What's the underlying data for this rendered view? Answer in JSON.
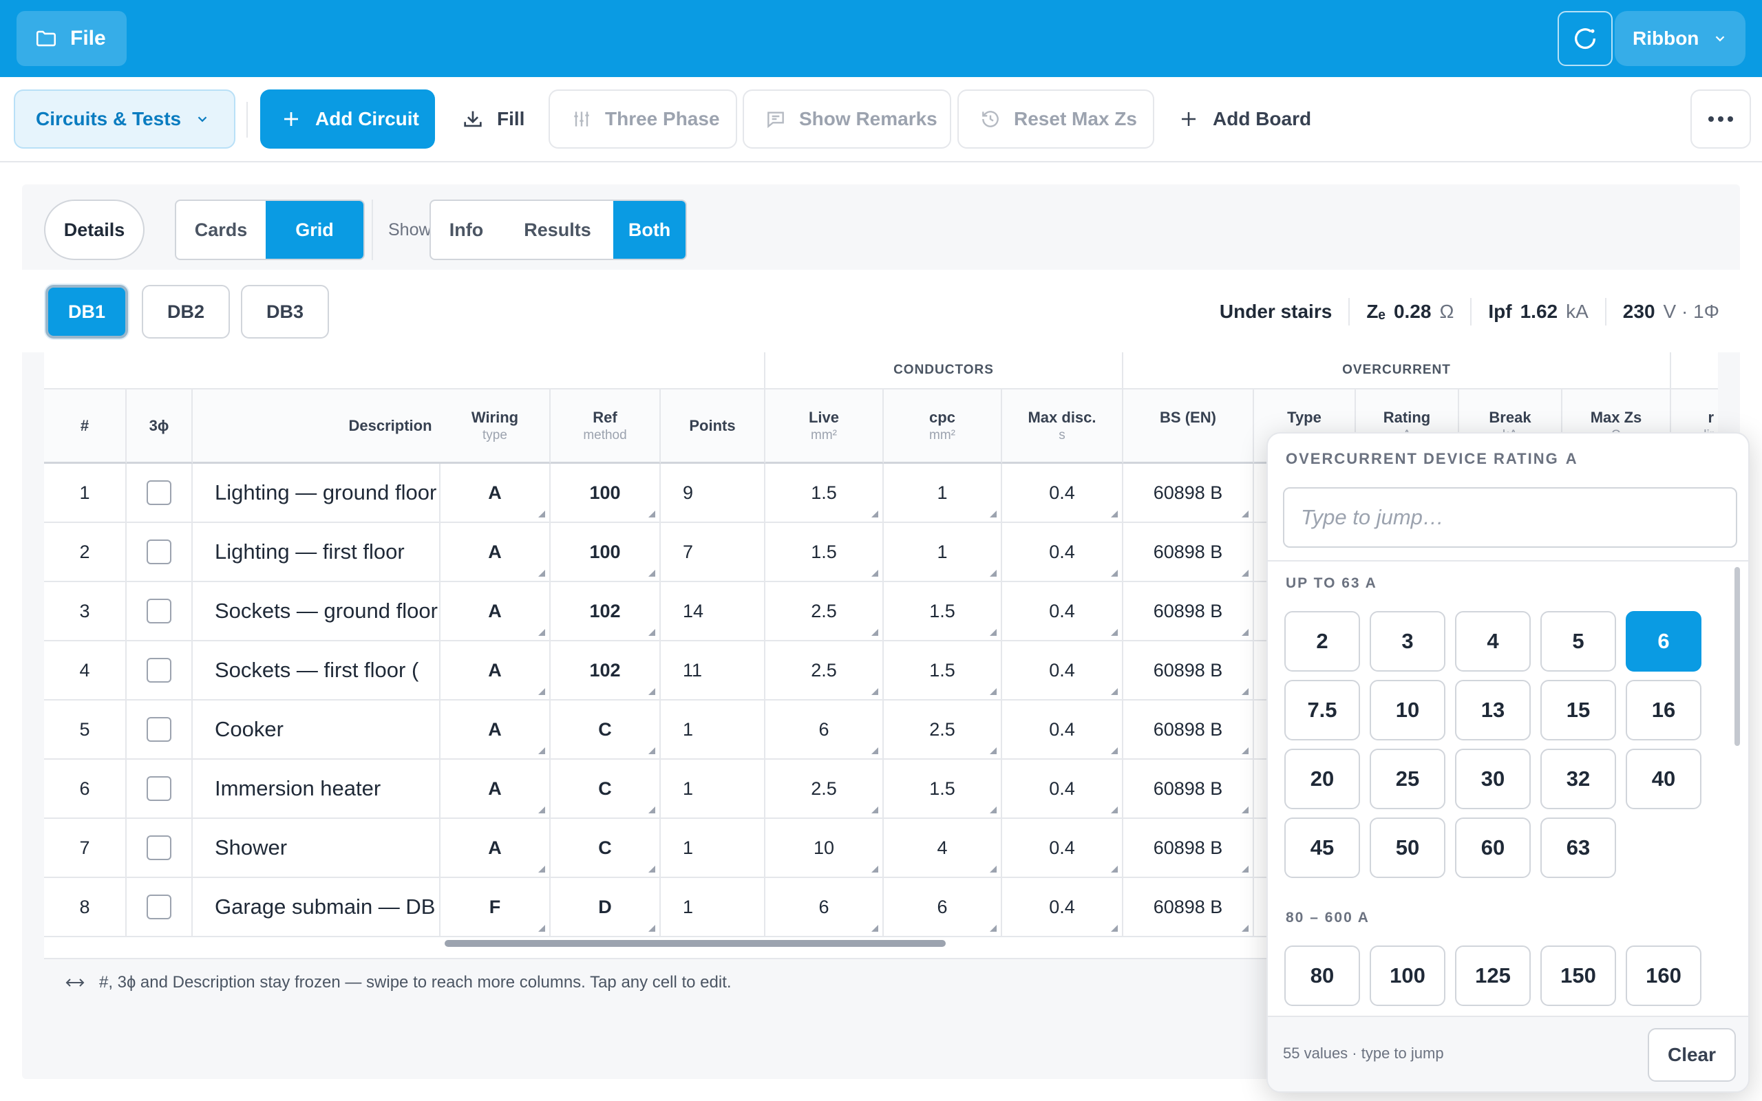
{
  "topbar": {
    "file_label": "File",
    "ribbon_label": "Ribbon"
  },
  "toolbar": {
    "circuits_label": "Circuits & Tests",
    "add_circuit_label": "Add Circuit",
    "fill_label": "Fill",
    "three_phase_label": "Three Phase",
    "show_remarks_label": "Show Remarks",
    "reset_max_zs_label": "Reset Max Zs",
    "add_board_label": "Add Board"
  },
  "view": {
    "details_label": "Details",
    "cards_label": "Cards",
    "grid_label": "Grid",
    "show_label": "Show",
    "info_label": "Info",
    "results_label": "Results",
    "both_label": "Both"
  },
  "boards": {
    "items": [
      "DB1",
      "DB2",
      "DB3"
    ],
    "selected": "DB1",
    "location": "Under stairs",
    "ze_label": "Zₑ",
    "ze_value": "0.28",
    "ze_unit": "Ω",
    "ipf_label": "Ipf",
    "ipf_value": "1.62",
    "ipf_unit": "kA",
    "voltage_value": "230",
    "voltage_unit": "V · 1Φ"
  },
  "grid": {
    "groups": {
      "conductors": "CONDUCTORS",
      "overcurrent": "OVERCURRENT"
    },
    "headers": {
      "num": "#",
      "three": "3ɸ",
      "description": "Description",
      "wiring": "Wiring",
      "wiring_sub": "type",
      "ref": "Ref",
      "ref_sub": "method",
      "points": "Points",
      "live": "Live",
      "live_sub": "mm²",
      "cpc": "cpc",
      "cpc_sub": "mm²",
      "maxdisc": "Max disc.",
      "maxdisc_sub": "s",
      "bs": "BS (EN)",
      "type": "Type",
      "rating": "Rating",
      "rating_sub": "A",
      "break": "Break",
      "break_sub": "kA",
      "maxzs": "Max Zs",
      "maxzs_sub": "Ω",
      "extra": "r",
      "extra_sub": "lir"
    },
    "rows": [
      {
        "num": "1",
        "desc": "Lighting — ground floor",
        "wiring": "A",
        "ref": "100",
        "points": "9",
        "live": "1.5",
        "cpc": "1",
        "disc": "0.4",
        "bs": "60898 B"
      },
      {
        "num": "2",
        "desc": "Lighting — first floor",
        "wiring": "A",
        "ref": "100",
        "points": "7",
        "live": "1.5",
        "cpc": "1",
        "disc": "0.4",
        "bs": "60898 B"
      },
      {
        "num": "3",
        "desc": "Sockets — ground floor",
        "wiring": "A",
        "ref": "102",
        "points": "14",
        "live": "2.5",
        "cpc": "1.5",
        "disc": "0.4",
        "bs": "60898 B"
      },
      {
        "num": "4",
        "desc": "Sockets — first floor (",
        "wiring": "A",
        "ref": "102",
        "points": "11",
        "live": "2.5",
        "cpc": "1.5",
        "disc": "0.4",
        "bs": "60898 B"
      },
      {
        "num": "5",
        "desc": "Cooker",
        "wiring": "A",
        "ref": "C",
        "points": "1",
        "live": "6",
        "cpc": "2.5",
        "disc": "0.4",
        "bs": "60898 B"
      },
      {
        "num": "6",
        "desc": "Immersion heater",
        "wiring": "A",
        "ref": "C",
        "points": "1",
        "live": "2.5",
        "cpc": "1.5",
        "disc": "0.4",
        "bs": "60898 B"
      },
      {
        "num": "7",
        "desc": "Shower",
        "wiring": "A",
        "ref": "C",
        "points": "1",
        "live": "10",
        "cpc": "4",
        "disc": "0.4",
        "bs": "60898 B"
      },
      {
        "num": "8",
        "desc": "Garage submain — DB",
        "wiring": "F",
        "ref": "D",
        "points": "1",
        "live": "6",
        "cpc": "6",
        "disc": "0.4",
        "bs": "60898 B"
      }
    ],
    "hint": "#, 3ɸ and Description stay frozen — swipe to reach more columns. Tap any cell to edit."
  },
  "popover": {
    "title": "OVERCURRENT DEVICE RATING",
    "title_unit": "A",
    "search_placeholder": "Type to jump…",
    "section1": "UP TO 63 A",
    "options1": [
      "2",
      "3",
      "4",
      "5",
      "6",
      "7.5",
      "10",
      "13",
      "15",
      "16",
      "20",
      "25",
      "30",
      "32",
      "40",
      "45",
      "50",
      "60",
      "63"
    ],
    "selected": "6",
    "section2": "80 – 600 A",
    "options2": [
      "80",
      "100",
      "125",
      "150",
      "160"
    ],
    "count_text": "55 values · type to jump",
    "clear_label": "Clear"
  }
}
